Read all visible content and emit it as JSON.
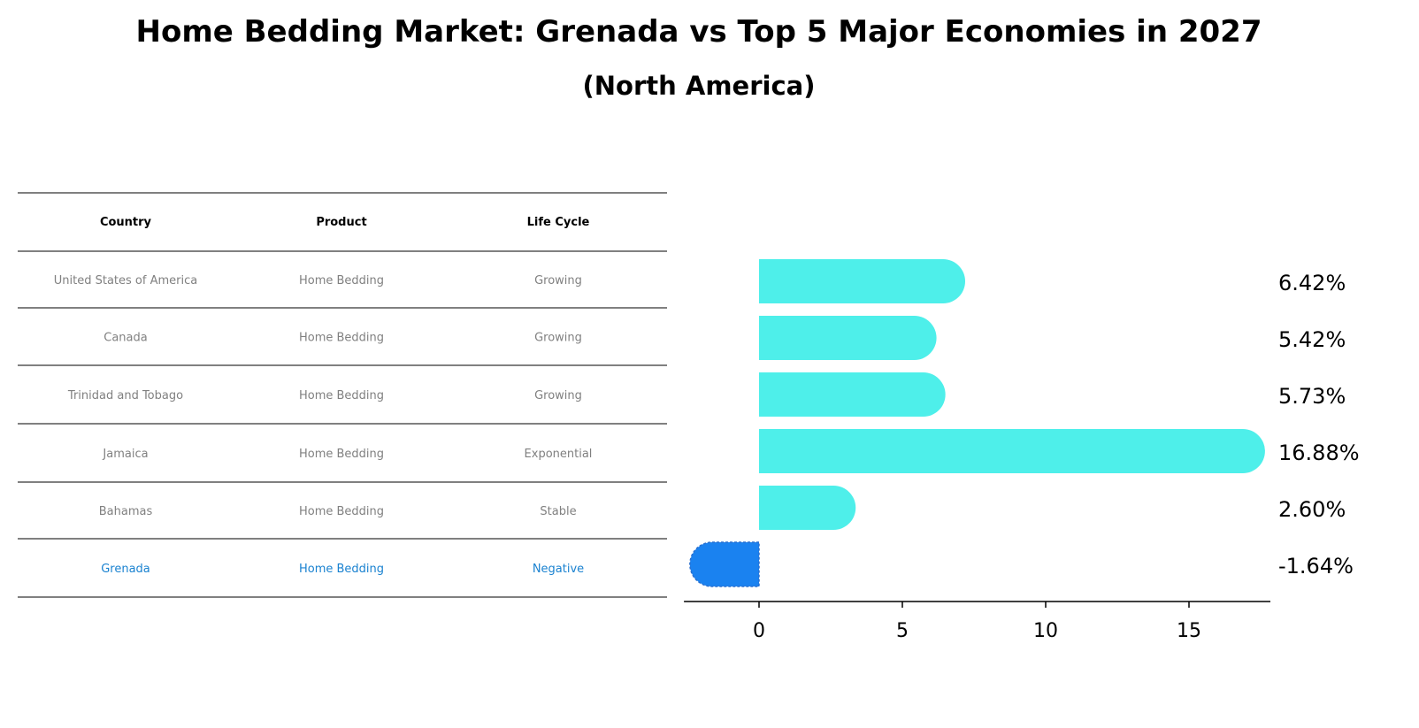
{
  "title": "Home Bedding Market: Grenada vs Top 5 Major Economies in 2027",
  "subtitle": "(North America)",
  "table": {
    "headers": [
      "Country",
      "Product",
      "Life Cycle"
    ],
    "rows": [
      [
        "United States of America",
        "Home Bedding",
        "Growing"
      ],
      [
        "Canada",
        "Home Bedding",
        "Growing"
      ],
      [
        "Trinidad and Tobago",
        "Home Bedding",
        "Growing"
      ],
      [
        "Jamaica",
        "Home Bedding",
        "Exponential"
      ],
      [
        "Bahamas",
        "Home Bedding",
        "Stable"
      ],
      [
        "Grenada",
        "Home Bedding",
        "Negative"
      ]
    ],
    "text_color": "#808080",
    "highlight_color": "#1a82d0"
  },
  "chart_data": {
    "type": "bar",
    "orientation": "horizontal",
    "categories": [
      "United States of America",
      "Canada",
      "Trinidad and Tobago",
      "Jamaica",
      "Bahamas",
      "Grenada"
    ],
    "values": [
      6.42,
      5.42,
      5.73,
      16.88,
      2.6,
      -1.64
    ],
    "labels": [
      "6.42%",
      "5.42%",
      "5.73%",
      "16.88%",
      "2.60%",
      "-1.64%"
    ],
    "xlim": [
      -2.62,
      17.84
    ],
    "xticks": [
      0,
      5,
      10,
      15
    ],
    "xtick_labels": [
      "0",
      "5",
      "10",
      "15"
    ],
    "colors": {
      "default": "#4eefea",
      "highlight": "#1a82f0"
    },
    "grid": false
  }
}
